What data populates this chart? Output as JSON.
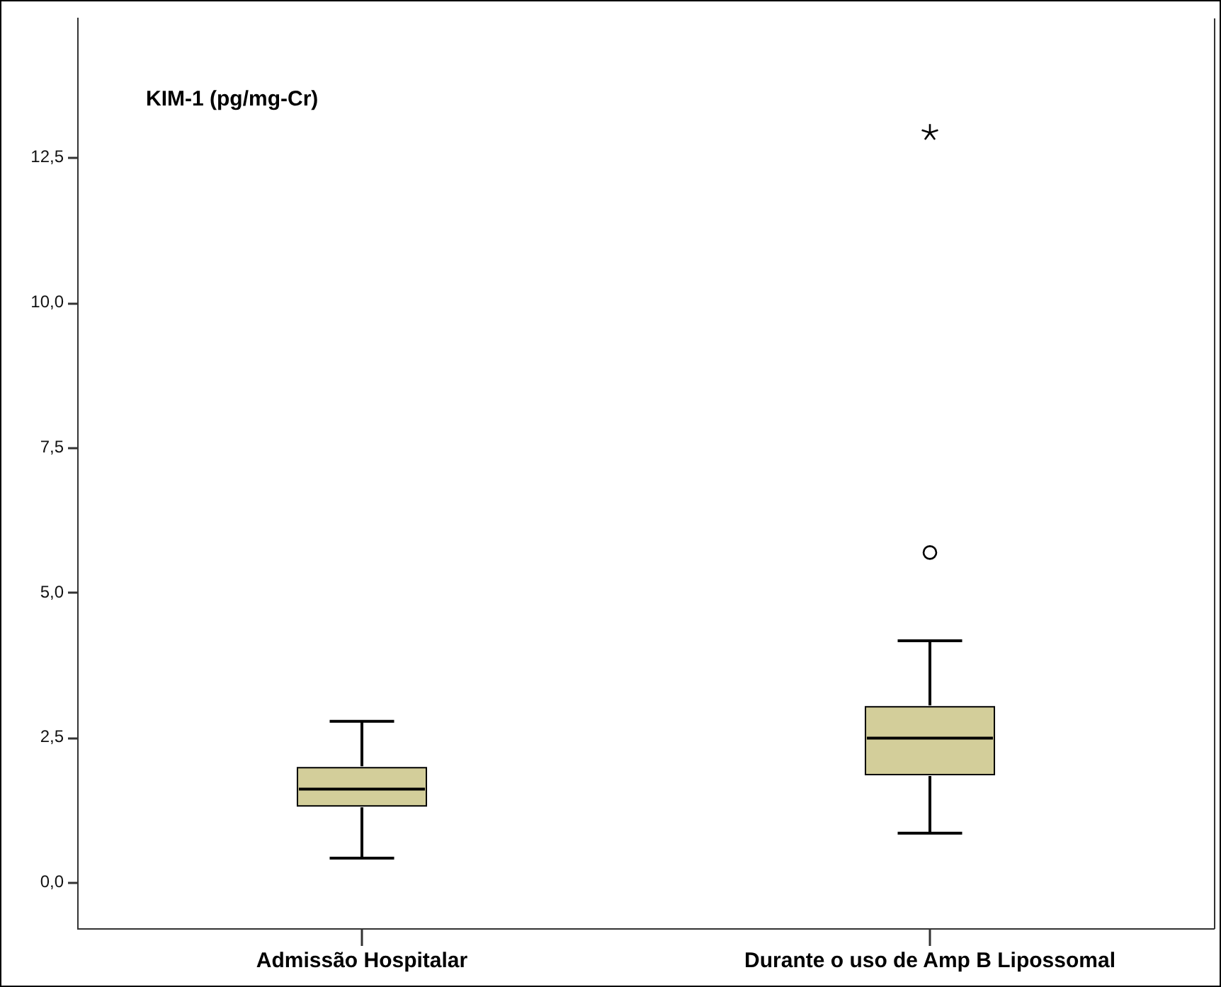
{
  "chart_data": {
    "type": "box",
    "title": "KIM-1 (pg/mg-Cr)",
    "categories": [
      "Admissão Hospitalar",
      "Durante o uso de Amp B Lipossomal"
    ],
    "color": "#d3ce9a",
    "boxes": [
      {
        "low": 0.42,
        "q1": 1.32,
        "median": 1.61,
        "q3": 1.98,
        "high": 2.78
      },
      {
        "low": 0.85,
        "q1": 1.86,
        "median": 2.49,
        "q3": 3.03,
        "high": 4.17,
        "outliers": [
          5.69,
          12.93
        ]
      }
    ],
    "ylim": [
      -0.8,
      14.9
    ],
    "yticks": [
      {
        "value": 0,
        "label": "0,0"
      },
      {
        "value": 2.5,
        "label": "2,5"
      },
      {
        "value": 5,
        "label": "5,0"
      },
      {
        "value": 7.5,
        "label": "7,5"
      },
      {
        "value": 10,
        "label": "10,0"
      },
      {
        "value": 12.5,
        "label": "12,5"
      }
    ],
    "grid": false,
    "legend": false
  }
}
